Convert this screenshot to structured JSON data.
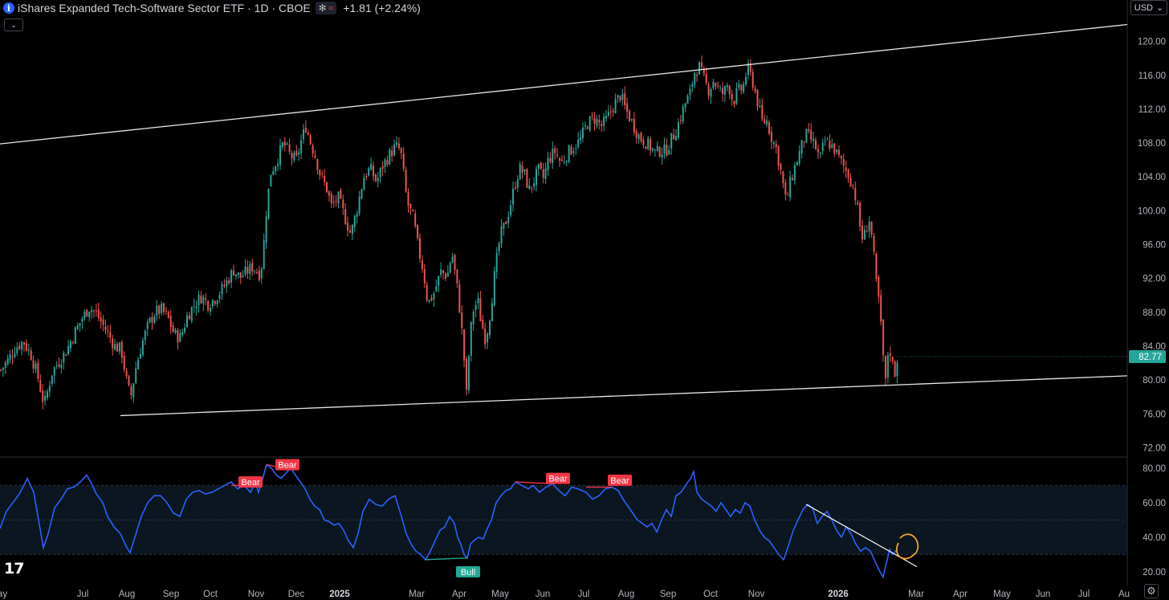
{
  "header": {
    "title": "iShares Expanded Tech-Software Sector ETF · 1D · CBOE",
    "info_icon": "info-icon",
    "status_icons": [
      "asterisk-icon",
      "approx-icon"
    ],
    "status_symbols": [
      "✻",
      "≈"
    ],
    "change": "+1.81 (+2.24%)"
  },
  "controls": {
    "collapse_symbol": "⌄",
    "currency": "USD",
    "currency_chevron": "⌄",
    "settings_symbol": "⚙"
  },
  "logo": {
    "text": "17"
  },
  "colors": {
    "up": "#26a69a",
    "down": "#ef5350",
    "rsi": "#2962ff",
    "bear": "#f23645",
    "bull": "#22ab94",
    "highlight": "#f5a623"
  },
  "chart_data": {
    "type": "candlestick",
    "price_axis": {
      "ticks": [
        "120.00",
        "116.00",
        "112.00",
        "108.00",
        "104.00",
        "100.00",
        "96.00",
        "92.00",
        "88.00",
        "84.00",
        "80.00",
        "76.00",
        "72.00"
      ],
      "range": [
        71,
        123
      ],
      "last_price_label": "82.77",
      "last_price": 82.77
    },
    "time_axis": {
      "labels": [
        "ay",
        "Jul",
        "Aug",
        "Sep",
        "Oct",
        "Nov",
        "Dec",
        "2025",
        "Mar",
        "Apr",
        "May",
        "Jun",
        "Jul",
        "Aug",
        "Sep",
        "Oct",
        "Nov",
        "2026",
        "Mar",
        "Apr",
        "May",
        "Jun",
        "Jul",
        "Au"
      ]
    },
    "close_path": [
      [
        0,
        81.2
      ],
      [
        8,
        82.2
      ],
      [
        18,
        83.8
      ],
      [
        28,
        84.6
      ],
      [
        38,
        82.9
      ],
      [
        46,
        80.4
      ],
      [
        54,
        77.0
      ],
      [
        64,
        81.0
      ],
      [
        74,
        82.4
      ],
      [
        82,
        83.5
      ],
      [
        92,
        85.6
      ],
      [
        102,
        87.4
      ],
      [
        110,
        88.6
      ],
      [
        118,
        88.0
      ],
      [
        126,
        86.7
      ],
      [
        134,
        85.4
      ],
      [
        142,
        84.0
      ],
      [
        150,
        83.6
      ],
      [
        158,
        79.2
      ],
      [
        162,
        78.0
      ],
      [
        168,
        81.4
      ],
      [
        176,
        84.4
      ],
      [
        184,
        86.6
      ],
      [
        192,
        88.0
      ],
      [
        200,
        88.3
      ],
      [
        208,
        87.4
      ],
      [
        216,
        85.4
      ],
      [
        224,
        85.0
      ],
      [
        232,
        87.5
      ],
      [
        240,
        88.8
      ],
      [
        250,
        89.9
      ],
      [
        258,
        89.0
      ],
      [
        266,
        89.6
      ],
      [
        274,
        90.5
      ],
      [
        282,
        91.7
      ],
      [
        290,
        93.0
      ],
      [
        298,
        92.1
      ],
      [
        306,
        92.8
      ],
      [
        314,
        93.4
      ],
      [
        322,
        92.6
      ],
      [
        326,
        94.0
      ],
      [
        330,
        99.4
      ],
      [
        336,
        104.5
      ],
      [
        344,
        106.0
      ],
      [
        352,
        108.0
      ],
      [
        360,
        106.6
      ],
      [
        368,
        105.9
      ],
      [
        374,
        108.2
      ],
      [
        380,
        110.0
      ],
      [
        386,
        108.0
      ],
      [
        392,
        106.4
      ],
      [
        398,
        104.2
      ],
      [
        406,
        102.6
      ],
      [
        412,
        100.5
      ],
      [
        420,
        101.6
      ],
      [
        428,
        99.4
      ],
      [
        436,
        97.2
      ],
      [
        444,
        100.4
      ],
      [
        452,
        104.0
      ],
      [
        460,
        105.0
      ],
      [
        468,
        103.4
      ],
      [
        476,
        105.4
      ],
      [
        484,
        106.6
      ],
      [
        492,
        107.6
      ],
      [
        498,
        107.1
      ],
      [
        506,
        101.0
      ],
      [
        514,
        99.0
      ],
      [
        520,
        95.5
      ],
      [
        526,
        93.0
      ],
      [
        532,
        89.0
      ],
      [
        540,
        90.4
      ],
      [
        548,
        92.8
      ],
      [
        556,
        92.3
      ],
      [
        562,
        95.0
      ],
      [
        568,
        91.2
      ],
      [
        572,
        88.0
      ],
      [
        576,
        84.0
      ],
      [
        580,
        78.3
      ],
      [
        584,
        84.6
      ],
      [
        588,
        88.2
      ],
      [
        594,
        89.4
      ],
      [
        598,
        87.0
      ],
      [
        604,
        84.7
      ],
      [
        610,
        88.3
      ],
      [
        616,
        93.2
      ],
      [
        622,
        97.0
      ],
      [
        628,
        98.4
      ],
      [
        634,
        100.4
      ],
      [
        640,
        103.0
      ],
      [
        646,
        105.0
      ],
      [
        652,
        104.4
      ],
      [
        658,
        102.4
      ],
      [
        664,
        103.6
      ],
      [
        670,
        104.8
      ],
      [
        676,
        103.8
      ],
      [
        682,
        106.1
      ],
      [
        690,
        107.0
      ],
      [
        698,
        105.6
      ],
      [
        706,
        106.8
      ],
      [
        714,
        107.6
      ],
      [
        722,
        108.4
      ],
      [
        730,
        110.3
      ],
      [
        740,
        110.9
      ],
      [
        748,
        110.0
      ],
      [
        756,
        111.0
      ],
      [
        764,
        112.6
      ],
      [
        772,
        113.7
      ],
      [
        778,
        112.0
      ],
      [
        784,
        110.9
      ],
      [
        790,
        109.7
      ],
      [
        796,
        108.6
      ],
      [
        802,
        108.2
      ],
      [
        810,
        107.4
      ],
      [
        816,
        106.8
      ],
      [
        822,
        107.2
      ],
      [
        828,
        107.0
      ],
      [
        834,
        108.2
      ],
      [
        840,
        109.3
      ],
      [
        846,
        110.9
      ],
      [
        852,
        112.6
      ],
      [
        858,
        113.7
      ],
      [
        864,
        116.4
      ],
      [
        870,
        117.0
      ],
      [
        876,
        115.4
      ],
      [
        882,
        114.2
      ],
      [
        888,
        115.5
      ],
      [
        894,
        114.2
      ],
      [
        900,
        113.8
      ],
      [
        906,
        115.1
      ],
      [
        912,
        112.8
      ],
      [
        918,
        114.2
      ],
      [
        924,
        114.4
      ],
      [
        930,
        116.9
      ],
      [
        936,
        115.4
      ],
      [
        942,
        113.1
      ],
      [
        948,
        110.5
      ],
      [
        954,
        110.6
      ],
      [
        960,
        108.7
      ],
      [
        966,
        107.3
      ],
      [
        972,
        104.4
      ],
      [
        978,
        101.0
      ],
      [
        984,
        103.6
      ],
      [
        990,
        105.5
      ],
      [
        996,
        107.2
      ],
      [
        1002,
        109.0
      ],
      [
        1008,
        108.6
      ],
      [
        1014,
        107.7
      ],
      [
        1020,
        106.0
      ],
      [
        1026,
        108.2
      ],
      [
        1032,
        107.9
      ],
      [
        1038,
        107.3
      ],
      [
        1044,
        106.2
      ],
      [
        1050,
        105.2
      ],
      [
        1056,
        104.2
      ],
      [
        1062,
        102.8
      ],
      [
        1066,
        100.9
      ],
      [
        1070,
        98.2
      ],
      [
        1074,
        96.4
      ],
      [
        1078,
        98.0
      ],
      [
        1082,
        99.0
      ],
      [
        1086,
        96.0
      ],
      [
        1090,
        91.6
      ],
      [
        1094,
        89.1
      ],
      [
        1098,
        84.0
      ],
      [
        1102,
        79.6
      ],
      [
        1106,
        84.5
      ],
      [
        1110,
        82.0
      ],
      [
        1114,
        80.8
      ],
      [
        1117,
        82.8
      ]
    ],
    "trendlines": [
      {
        "name": "upper-channel",
        "points": [
          [
            -10,
            107.8
          ],
          [
            1404,
            122.0
          ]
        ]
      },
      {
        "name": "lower-channel",
        "points": [
          [
            150,
            75.8
          ],
          [
            1404,
            80.5
          ]
        ]
      }
    ],
    "rsi": {
      "axis_ticks": [
        "80.00",
        "60.00",
        "40.00",
        "20.00"
      ],
      "range": [
        13,
        85
      ],
      "band": [
        30,
        70
      ],
      "midline": 50,
      "path": [
        [
          0,
          45
        ],
        [
          8,
          55
        ],
        [
          16,
          60
        ],
        [
          24,
          65
        ],
        [
          34,
          74
        ],
        [
          42,
          66
        ],
        [
          48,
          50
        ],
        [
          54,
          34
        ],
        [
          60,
          42
        ],
        [
          68,
          57
        ],
        [
          76,
          62
        ],
        [
          84,
          68
        ],
        [
          92,
          69
        ],
        [
          100,
          72
        ],
        [
          108,
          76
        ],
        [
          114,
          71
        ],
        [
          120,
          65
        ],
        [
          128,
          60
        ],
        [
          134,
          52
        ],
        [
          142,
          46
        ],
        [
          150,
          42
        ],
        [
          158,
          34
        ],
        [
          162,
          31
        ],
        [
          168,
          40
        ],
        [
          176,
          52
        ],
        [
          184,
          60
        ],
        [
          192,
          64
        ],
        [
          200,
          64
        ],
        [
          208,
          60
        ],
        [
          216,
          54
        ],
        [
          224,
          52
        ],
        [
          232,
          62
        ],
        [
          240,
          66
        ],
        [
          248,
          67
        ],
        [
          256,
          65
        ],
        [
          264,
          66
        ],
        [
          272,
          68
        ],
        [
          280,
          70
        ],
        [
          288,
          72
        ],
        [
          296,
          68
        ],
        [
          304,
          70
        ],
        [
          312,
          66
        ],
        [
          318,
          72
        ],
        [
          322,
          66
        ],
        [
          326,
          72
        ],
        [
          332,
          82
        ],
        [
          338,
          80
        ],
        [
          344,
          76
        ],
        [
          350,
          74
        ],
        [
          356,
          77
        ],
        [
          362,
          80
        ],
        [
          368,
          76
        ],
        [
          374,
          72
        ],
        [
          380,
          68
        ],
        [
          386,
          62
        ],
        [
          392,
          58
        ],
        [
          398,
          56
        ],
        [
          404,
          50
        ],
        [
          410,
          49
        ],
        [
          416,
          47
        ],
        [
          422,
          48
        ],
        [
          428,
          44
        ],
        [
          434,
          38
        ],
        [
          440,
          34
        ],
        [
          446,
          42
        ],
        [
          452,
          55
        ],
        [
          460,
          62
        ],
        [
          468,
          59
        ],
        [
          476,
          58
        ],
        [
          484,
          62
        ],
        [
          492,
          64
        ],
        [
          500,
          52
        ],
        [
          506,
          42
        ],
        [
          512,
          36
        ],
        [
          518,
          32
        ],
        [
          524,
          30
        ],
        [
          530,
          27
        ],
        [
          536,
          32
        ],
        [
          542,
          38
        ],
        [
          548,
          44
        ],
        [
          554,
          46
        ],
        [
          560,
          52
        ],
        [
          566,
          48
        ],
        [
          570,
          40
        ],
        [
          574,
          36
        ],
        [
          578,
          30
        ],
        [
          582,
          28
        ],
        [
          586,
          36
        ],
        [
          590,
          38
        ],
        [
          596,
          40
        ],
        [
          602,
          39
        ],
        [
          606,
          44
        ],
        [
          612,
          50
        ],
        [
          618,
          60
        ],
        [
          624,
          64
        ],
        [
          630,
          67
        ],
        [
          636,
          68
        ],
        [
          642,
          72
        ],
        [
          650,
          70
        ],
        [
          658,
          68
        ],
        [
          664,
          70
        ],
        [
          672,
          66
        ],
        [
          680,
          69
        ],
        [
          688,
          71
        ],
        [
          696,
          67
        ],
        [
          704,
          64
        ],
        [
          712,
          69
        ],
        [
          720,
          68
        ],
        [
          730,
          66
        ],
        [
          738,
          62
        ],
        [
          746,
          64
        ],
        [
          754,
          68
        ],
        [
          762,
          69
        ],
        [
          770,
          67
        ],
        [
          776,
          62
        ],
        [
          782,
          58
        ],
        [
          788,
          54
        ],
        [
          794,
          50
        ],
        [
          800,
          48
        ],
        [
          806,
          46
        ],
        [
          812,
          48
        ],
        [
          818,
          43
        ],
        [
          824,
          50
        ],
        [
          830,
          56
        ],
        [
          836,
          52
        ],
        [
          842,
          64
        ],
        [
          848,
          66
        ],
        [
          854,
          70
        ],
        [
          860,
          74
        ],
        [
          864,
          78
        ],
        [
          868,
          66
        ],
        [
          874,
          62
        ],
        [
          880,
          60
        ],
        [
          886,
          58
        ],
        [
          892,
          55
        ],
        [
          898,
          60
        ],
        [
          904,
          56
        ],
        [
          910,
          52
        ],
        [
          916,
          56
        ],
        [
          922,
          54
        ],
        [
          928,
          60
        ],
        [
          934,
          58
        ],
        [
          940,
          50
        ],
        [
          946,
          44
        ],
        [
          952,
          40
        ],
        [
          958,
          38
        ],
        [
          964,
          34
        ],
        [
          970,
          30
        ],
        [
          976,
          27
        ],
        [
          982,
          35
        ],
        [
          988,
          44
        ],
        [
          994,
          50
        ],
        [
          1000,
          56
        ],
        [
          1006,
          59
        ],
        [
          1012,
          57
        ],
        [
          1018,
          48
        ],
        [
          1024,
          52
        ],
        [
          1030,
          55
        ],
        [
          1036,
          50
        ],
        [
          1042,
          44
        ],
        [
          1048,
          40
        ],
        [
          1054,
          46
        ],
        [
          1060,
          42
        ],
        [
          1066,
          36
        ],
        [
          1072,
          32
        ],
        [
          1078,
          34
        ],
        [
          1084,
          32
        ],
        [
          1088,
          28
        ],
        [
          1092,
          24
        ],
        [
          1096,
          20
        ],
        [
          1100,
          17
        ],
        [
          1104,
          25
        ],
        [
          1108,
          33
        ],
        [
          1112,
          30
        ],
        [
          1117,
          33
        ]
      ],
      "divergence_labels": [
        {
          "label": "Bear",
          "kind": "bear",
          "line": [
            [
              288,
              70
            ],
            [
              322,
              70
            ]
          ],
          "x": 312,
          "value": 72
        },
        {
          "label": "Bear",
          "kind": "bear",
          "line": [
            [
              332,
              82
            ],
            [
              362,
              79
            ]
          ],
          "x": 358,
          "value": 82
        },
        {
          "label": "Bear",
          "kind": "bear",
          "line": [
            [
              642,
              72
            ],
            [
              688,
              71
            ]
          ],
          "x": 695,
          "value": 74
        },
        {
          "label": "Bear",
          "kind": "bear",
          "line": [
            [
              730,
              69
            ],
            [
              762,
              69
            ]
          ],
          "x": 772,
          "value": 73
        },
        {
          "label": "Bull",
          "kind": "bull",
          "line": [
            [
              530,
              27
            ],
            [
              582,
              28
            ]
          ],
          "x": 583,
          "value": 20
        }
      ],
      "trendline": [
        [
          1004,
          59
        ],
        [
          1142,
          23
        ]
      ]
    }
  }
}
